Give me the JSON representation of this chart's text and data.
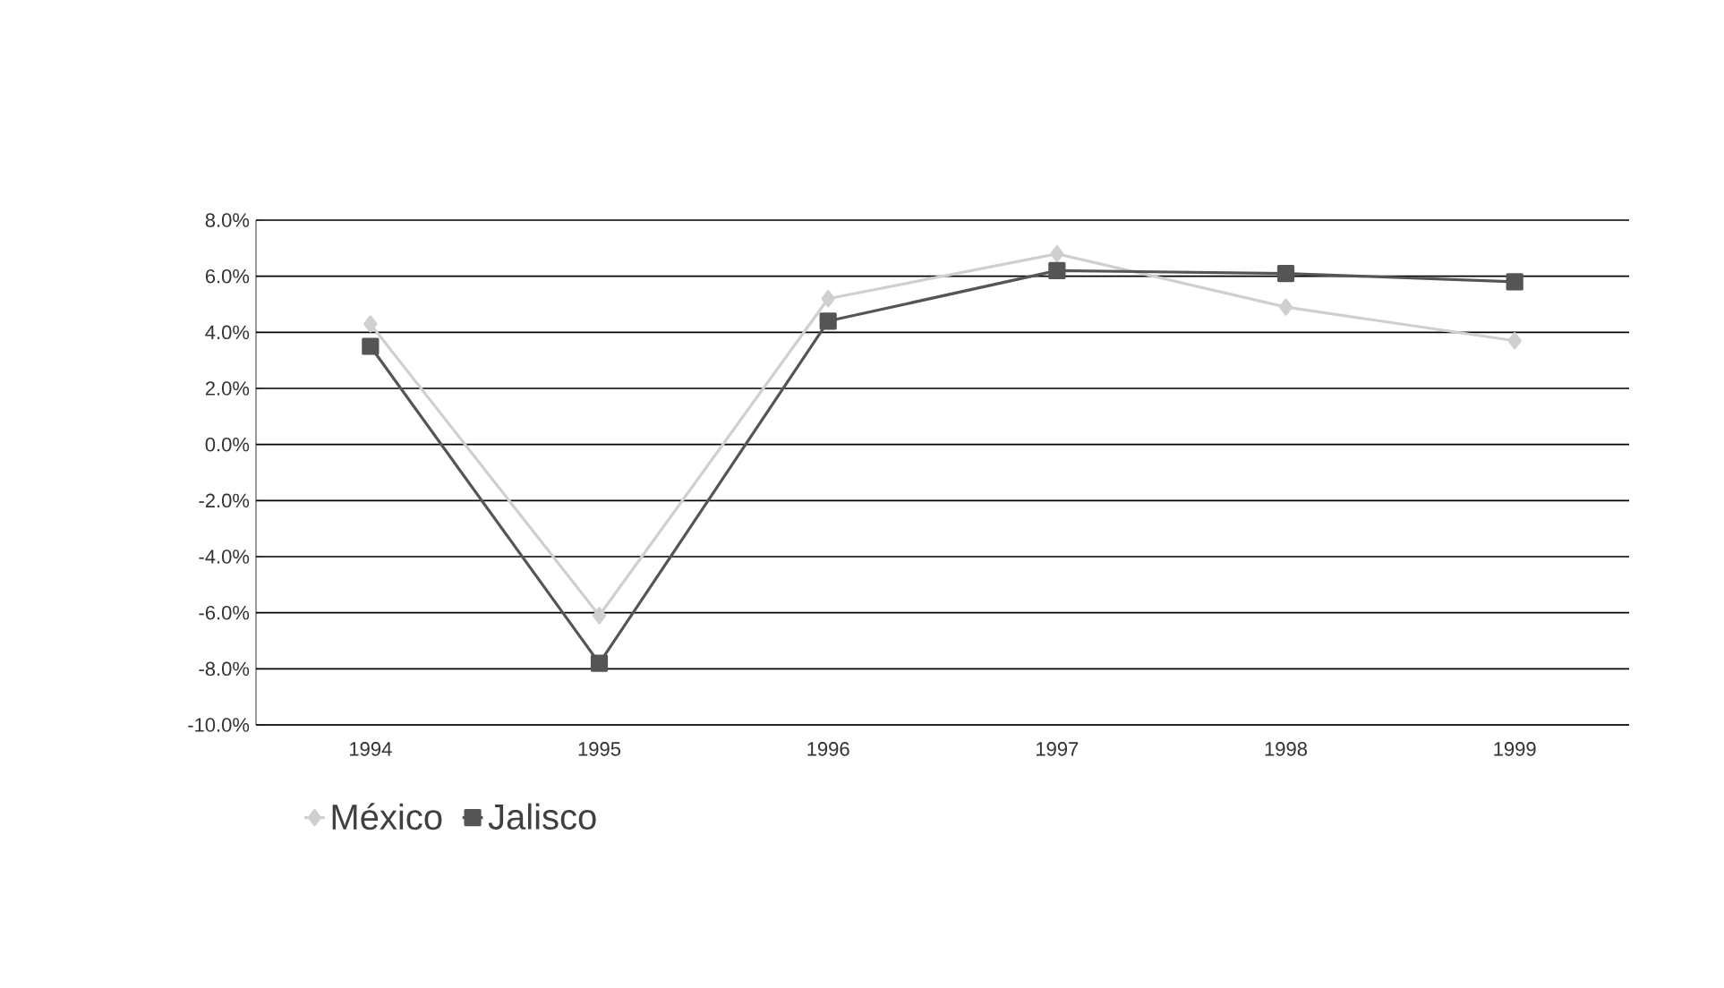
{
  "chart_data": {
    "type": "line",
    "categories": [
      "1994",
      "1995",
      "1996",
      "1997",
      "1998",
      "1999"
    ],
    "series": [
      {
        "name": "México",
        "color": "#cfcfcf",
        "marker": "diamond",
        "values": [
          4.3,
          -6.1,
          5.2,
          6.8,
          4.9,
          3.7
        ]
      },
      {
        "name": "Jalisco",
        "color": "#555555",
        "marker": "square",
        "values": [
          3.5,
          -7.8,
          4.4,
          6.2,
          6.1,
          5.8
        ]
      }
    ],
    "ylim": [
      -10,
      8
    ],
    "yticks": [
      {
        "value": -10,
        "label": "-10.0%"
      },
      {
        "value": -8,
        "label": "-8.0%"
      },
      {
        "value": -6,
        "label": "-6.0%"
      },
      {
        "value": -4,
        "label": "-4.0%"
      },
      {
        "value": -2,
        "label": "-2.0%"
      },
      {
        "value": 0,
        "label": "0.0%"
      },
      {
        "value": 2,
        "label": "2.0%"
      },
      {
        "value": 4,
        "label": "4.0%"
      },
      {
        "value": 6,
        "label": "6.0%"
      },
      {
        "value": 8,
        "label": "8.0%"
      }
    ],
    "grid": "y",
    "legend": "bottom left",
    "line_style": "solid"
  }
}
